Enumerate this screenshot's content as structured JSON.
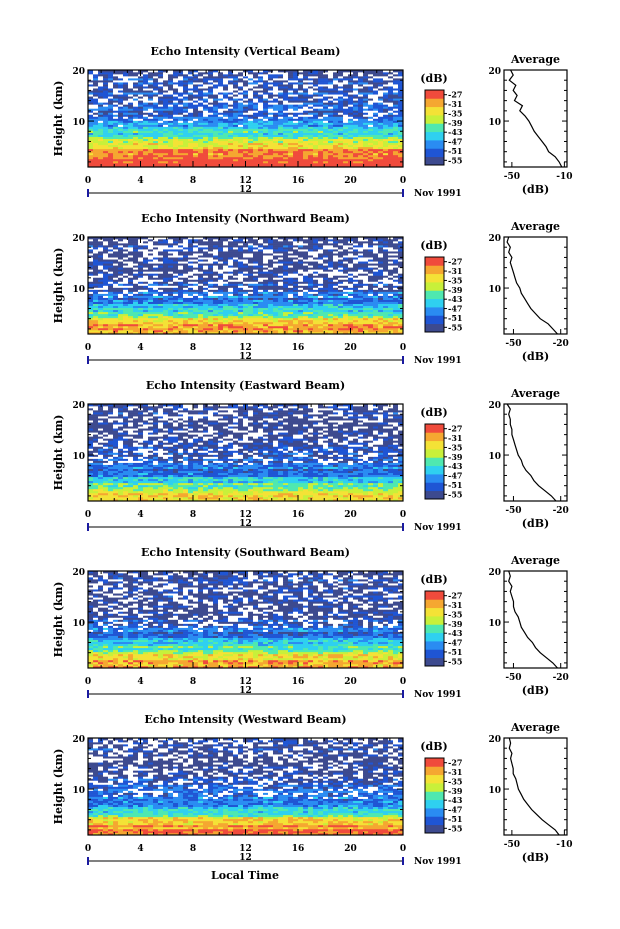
{
  "colors": {
    "scale": [
      "#3d4a8f",
      "#1f55d4",
      "#2a8cf2",
      "#2fd0f0",
      "#4fe8b0",
      "#c8f03a",
      "#f4e236",
      "#f5a731",
      "#f04b3c"
    ],
    "background": "#ffffff",
    "missing": "#ffffff"
  },
  "xaxis": {
    "ticks": [
      "0",
      "4",
      "8",
      "12",
      "16",
      "20",
      "0"
    ],
    "date_label": "12",
    "month_label": "Nov 1991",
    "label": "Local Time"
  },
  "yaxis": {
    "label": "Height (km)",
    "ticks": [
      "10",
      "20"
    ]
  },
  "colorbar": {
    "title": "(dB)",
    "ticks": [
      "-27",
      "-31",
      "-35",
      "-39",
      "-43",
      "-47",
      "-51",
      "-55"
    ]
  },
  "average": {
    "title": "Average",
    "xlabel": "(dB)",
    "yticks": [
      "10",
      "20"
    ]
  },
  "chart_data": [
    {
      "type": "heatmap",
      "title": "Echo Intensity (Vertical Beam)",
      "xlabel": "",
      "ylabel": "Height (km)",
      "xlim": [
        0,
        24
      ],
      "ylim": [
        1,
        20
      ],
      "zlim": [
        -57,
        -25
      ],
      "color_ticks": [
        -27,
        -31,
        -35,
        -39,
        -43,
        -47,
        -51,
        -55
      ],
      "height_km": [
        2,
        4,
        6,
        8,
        10,
        12,
        14,
        16,
        18,
        20
      ],
      "mean_db_profile": [
        -26,
        -28,
        -36,
        -44,
        -48,
        -52,
        -53,
        -52,
        -54,
        -55
      ],
      "average_profile": {
        "xticks": [
          "-50",
          "-10"
        ],
        "xlim": [
          -56,
          -8
        ],
        "height_km": [
          1,
          2,
          3,
          4,
          5,
          6,
          7,
          8,
          9,
          10,
          11,
          12,
          13,
          14,
          15,
          16,
          17,
          18,
          19,
          20
        ],
        "db": [
          -12,
          -14,
          -17,
          -22,
          -24,
          -27,
          -30,
          -33,
          -35,
          -37,
          -40,
          -44,
          -42,
          -48,
          -46,
          -49,
          -47,
          -52,
          -49,
          -51
        ]
      }
    },
    {
      "type": "heatmap",
      "title": "Echo Intensity (Northward Beam)",
      "xlabel": "",
      "ylabel": "Height (km)",
      "xlim": [
        0,
        24
      ],
      "ylim": [
        1,
        20
      ],
      "zlim": [
        -57,
        -25
      ],
      "color_ticks": [
        -27,
        -31,
        -35,
        -39,
        -43,
        -47,
        -51,
        -55
      ],
      "height_km": [
        2,
        4,
        6,
        8,
        10,
        12,
        14,
        16,
        18,
        20
      ],
      "mean_db_profile": [
        -30,
        -36,
        -44,
        -50,
        -53,
        -55,
        -55,
        -56,
        -55,
        -56
      ],
      "average_profile": {
        "xticks": [
          "-50",
          "-20"
        ],
        "xlim": [
          -56,
          -16
        ],
        "height_km": [
          1,
          2,
          3,
          4,
          5,
          6,
          7,
          8,
          9,
          10,
          11,
          12,
          13,
          14,
          15,
          16,
          17,
          18,
          19,
          20
        ],
        "db": [
          -22,
          -25,
          -28,
          -33,
          -36,
          -39,
          -41,
          -43,
          -45,
          -46,
          -48,
          -49,
          -50,
          -51,
          -52,
          -51,
          -53,
          -52,
          -54,
          -53
        ]
      }
    },
    {
      "type": "heatmap",
      "title": "Echo Intensity (Eastward Beam)",
      "xlabel": "",
      "ylabel": "Height (km)",
      "xlim": [
        0,
        24
      ],
      "ylim": [
        1,
        20
      ],
      "zlim": [
        -57,
        -25
      ],
      "color_ticks": [
        -27,
        -31,
        -35,
        -39,
        -43,
        -47,
        -51,
        -55
      ],
      "height_km": [
        2,
        4,
        6,
        8,
        10,
        12,
        14,
        16,
        18,
        20
      ],
      "mean_db_profile": [
        -34,
        -40,
        -47,
        -51,
        -54,
        -55,
        -56,
        -56,
        -55,
        -56
      ],
      "average_profile": {
        "xticks": [
          "-50",
          "-20"
        ],
        "xlim": [
          -56,
          -16
        ],
        "height_km": [
          1,
          2,
          3,
          4,
          5,
          6,
          7,
          8,
          9,
          10,
          11,
          12,
          13,
          14,
          15,
          16,
          17,
          18,
          19,
          20
        ],
        "db": [
          -23,
          -26,
          -30,
          -34,
          -37,
          -39,
          -42,
          -44,
          -45,
          -47,
          -48,
          -49,
          -50,
          -51,
          -51,
          -52,
          -52,
          -53,
          -52,
          -54
        ]
      }
    },
    {
      "type": "heatmap",
      "title": "Echo Intensity (Southward Beam)",
      "xlabel": "",
      "ylabel": "Height (km)",
      "xlim": [
        0,
        24
      ],
      "ylim": [
        1,
        20
      ],
      "zlim": [
        -57,
        -25
      ],
      "color_ticks": [
        -27,
        -31,
        -35,
        -39,
        -43,
        -47,
        -51,
        -55
      ],
      "height_km": [
        2,
        4,
        6,
        8,
        10,
        12,
        14,
        16,
        18,
        20
      ],
      "mean_db_profile": [
        -31,
        -38,
        -45,
        -50,
        -53,
        -55,
        -55,
        -56,
        -55,
        -56
      ],
      "average_profile": {
        "xticks": [
          "-50",
          "-20"
        ],
        "xlim": [
          -56,
          -16
        ],
        "height_km": [
          1,
          2,
          3,
          4,
          5,
          6,
          7,
          8,
          9,
          10,
          11,
          12,
          13,
          14,
          15,
          16,
          17,
          18,
          19,
          20
        ],
        "db": [
          -22,
          -25,
          -29,
          -33,
          -36,
          -38,
          -41,
          -43,
          -45,
          -46,
          -47,
          -49,
          -50,
          -50,
          -51,
          -52,
          -51,
          -53,
          -52,
          -53
        ]
      }
    },
    {
      "type": "heatmap",
      "title": "Echo Intensity (Westward Beam)",
      "xlabel": "Local Time",
      "ylabel": "Height (km)",
      "xlim": [
        0,
        24
      ],
      "ylim": [
        1,
        20
      ],
      "zlim": [
        -57,
        -25
      ],
      "color_ticks": [
        -27,
        -31,
        -35,
        -39,
        -43,
        -47,
        -51,
        -55
      ],
      "height_km": [
        2,
        4,
        6,
        8,
        10,
        12,
        14,
        16,
        18,
        20
      ],
      "mean_db_profile": [
        -28,
        -35,
        -44,
        -50,
        -53,
        -55,
        -55,
        -56,
        -55,
        -56
      ],
      "average_profile": {
        "xticks": [
          "-50",
          "-10"
        ],
        "xlim": [
          -56,
          -8
        ],
        "height_km": [
          1,
          2,
          3,
          4,
          5,
          6,
          7,
          8,
          9,
          10,
          11,
          12,
          13,
          14,
          15,
          16,
          17,
          18,
          19,
          20
        ],
        "db": [
          -14,
          -17,
          -22,
          -27,
          -31,
          -35,
          -38,
          -41,
          -43,
          -45,
          -46,
          -47,
          -49,
          -49,
          -50,
          -51,
          -50,
          -52,
          -51,
          -52
        ]
      }
    }
  ]
}
